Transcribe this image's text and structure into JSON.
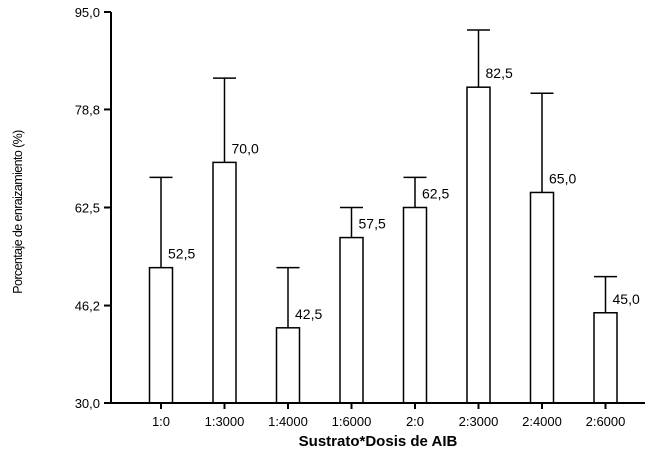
{
  "chart_data": {
    "type": "bar",
    "title": "",
    "xlabel": "Sustrato*Dosis de AIB",
    "ylabel": "Porcentaje de enraizamiento (%)",
    "ylim": [
      30.0,
      95.0
    ],
    "yticks": [
      "30,0",
      "46,2",
      "62,5",
      "78,8",
      "95,0"
    ],
    "ytick_values": [
      30.0,
      46.2,
      62.5,
      78.8,
      95.0
    ],
    "categories": [
      "1:0",
      "1:3000",
      "1:4000",
      "1:6000",
      "2:0",
      "2:3000",
      "2:4000",
      "2:6000"
    ],
    "values": [
      52.5,
      70.0,
      42.5,
      57.5,
      62.5,
      82.5,
      65.0,
      45.0
    ],
    "value_labels": [
      "52,5",
      "70,0",
      "42,5",
      "57,5",
      "62,5",
      "82,5",
      "65,0",
      "45,0"
    ],
    "error_upper": [
      67.5,
      84.0,
      52.5,
      62.5,
      67.5,
      92.0,
      81.5,
      51.0
    ],
    "error_bars": "upper",
    "bar_fill": "#ffffff",
    "bar_stroke": "#000000",
    "grid": false,
    "legend": "none"
  }
}
